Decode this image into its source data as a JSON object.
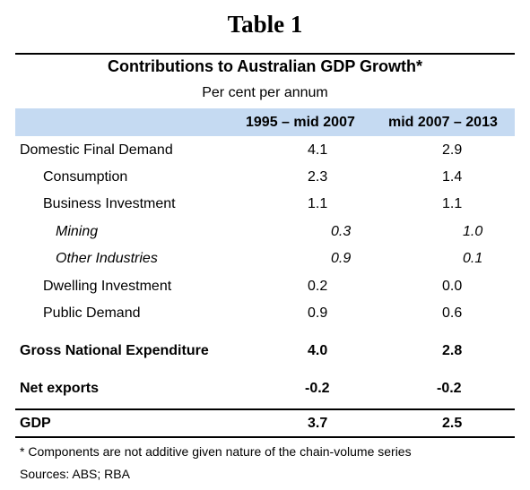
{
  "table_label": "Table 1",
  "title": "Contributions to Australian GDP Growth*",
  "subtitle": "Per cent per annum",
  "columns": [
    "1995 – mid 2007",
    "mid 2007 – 2013"
  ],
  "rows": [
    {
      "label": "Domestic Final Demand",
      "v1": "4.1",
      "v2": "2.9"
    },
    {
      "label": "Consumption",
      "v1": "2.3",
      "v2": "1.4"
    },
    {
      "label": "Business Investment",
      "v1": "1.1",
      "v2": "1.1"
    },
    {
      "label": "Mining",
      "v1": "0.3",
      "v2": "1.0"
    },
    {
      "label": "Other Industries",
      "v1": "0.9",
      "v2": "0.1"
    },
    {
      "label": "Dwelling Investment",
      "v1": "0.2",
      "v2": "0.0"
    },
    {
      "label": "Public Demand",
      "v1": "0.9",
      "v2": "0.6"
    },
    {
      "label": "Gross National Expenditure",
      "v1": "4.0",
      "v2": "2.8"
    },
    {
      "label": "Net exports",
      "v1": "-0.2",
      "v2": "-0.2"
    },
    {
      "label": "GDP",
      "v1": "3.7",
      "v2": "2.5"
    }
  ],
  "footnote": "* Components are not additive given nature of the chain-volume series",
  "sources": "Sources: ABS; RBA",
  "colors": {
    "header_band": "#c5daf2"
  }
}
